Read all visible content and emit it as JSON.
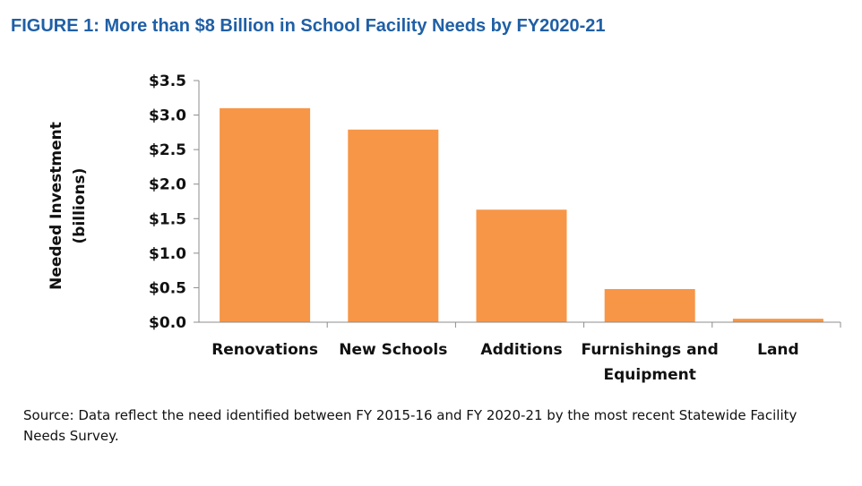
{
  "title": "FIGURE 1: More than $8 Billion in School Facility Needs by FY2020-21",
  "source": "Source: Data reflect the need identified between FY 2015-16 and FY 2020-21 by the most recent Statewide Facility Needs Survey.",
  "chart_data": {
    "type": "bar",
    "title": "FIGURE 1: More than $8 Billion in School Facility Needs by FY2020-21",
    "xlabel": "",
    "ylabel": [
      "Needed Investment",
      "(billions)"
    ],
    "categories": [
      [
        "Renovations"
      ],
      [
        "New Schools"
      ],
      [
        "Additions"
      ],
      [
        "Furnishings and",
        "Equipment"
      ],
      [
        "Land"
      ]
    ],
    "values": [
      3.1,
      2.79,
      1.63,
      0.48,
      0.05
    ],
    "ylim": [
      0,
      3.5
    ],
    "yticks": [
      0,
      0.5,
      1.0,
      1.5,
      2.0,
      2.5,
      3.0,
      3.5
    ],
    "ytick_labels": [
      "$0.0",
      "$0.5",
      "$1.0",
      "$1.5",
      "$2.0",
      "$2.5",
      "$3.0",
      "$3.5"
    ],
    "bar_color": "#f79646",
    "grid": false,
    "legend": "none"
  }
}
